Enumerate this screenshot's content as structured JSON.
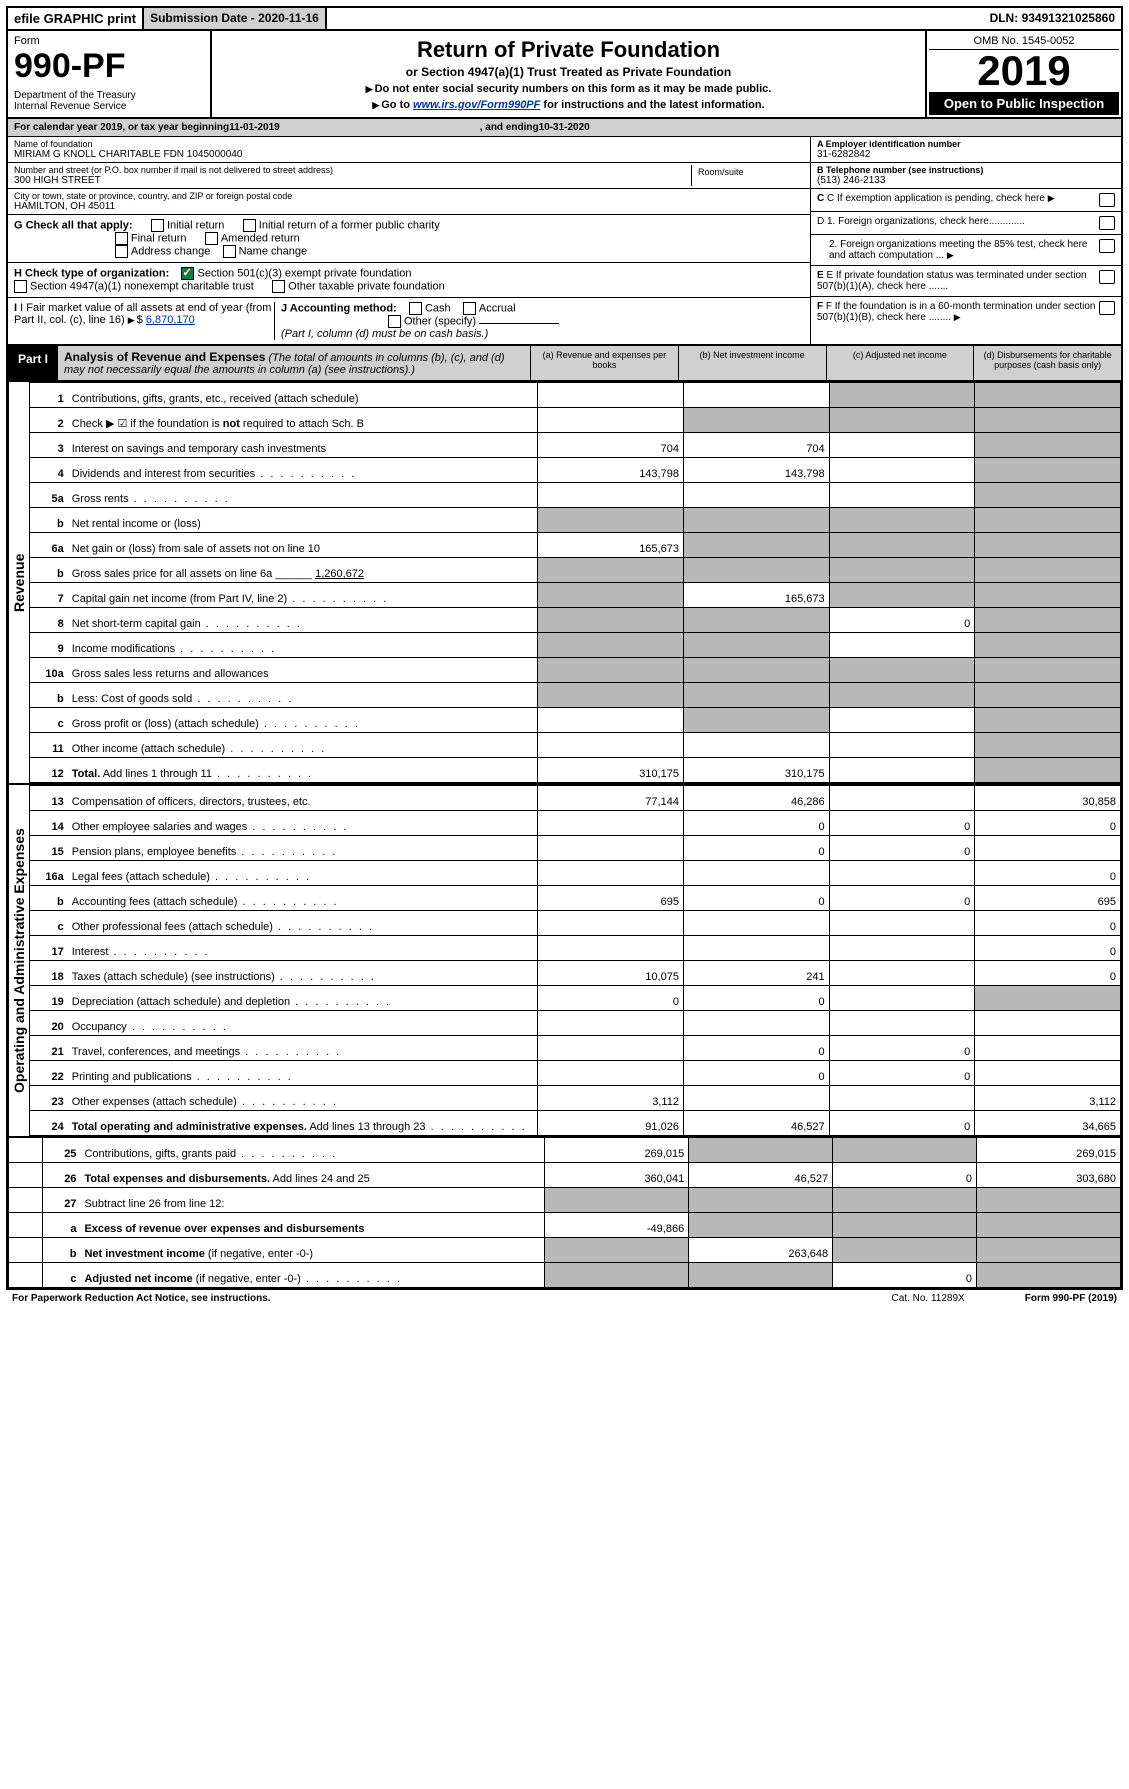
{
  "topbar": {
    "efile": "efile GRAPHIC print",
    "subdate_label": "Submission Date - ",
    "subdate": "2020-11-16",
    "dln_label": "DLN: ",
    "dln": "93491321025860"
  },
  "header": {
    "form_word": "Form",
    "form_no": "990-PF",
    "dept": "Department of the Treasury\nInternal Revenue Service",
    "title": "Return of Private Foundation",
    "subtitle": "or Section 4947(a)(1) Trust Treated as Private Foundation",
    "inst1": "Do not enter social security numbers on this form as it may be made public.",
    "inst2_pre": "Go to ",
    "inst2_link": "www.irs.gov/Form990PF",
    "inst2_post": " for instructions and the latest information.",
    "omb": "OMB No. 1545-0052",
    "year": "2019",
    "open": "Open to Public Inspection"
  },
  "calyear": {
    "pre": "For calendar year 2019, or tax year beginning ",
    "begin": "11-01-2019",
    "mid": ", and ending ",
    "end": "10-31-2020"
  },
  "info": {
    "name_label": "Name of foundation",
    "name": "MIRIAM G KNOLL CHARITABLE FDN 1045000040",
    "addr_label": "Number and street (or P.O. box number if mail is not delivered to street address)",
    "addr": "300 HIGH STREET",
    "room_label": "Room/suite",
    "city_label": "City or town, state or province, country, and ZIP or foreign postal code",
    "city": "HAMILTON, OH  45011",
    "ein_label": "A Employer identification number",
    "ein": "31-6282842",
    "tel_label": "B Telephone number (see instructions)",
    "tel": "(513) 246-2133",
    "c_label": "C If exemption application is pending, check here",
    "g_label": "G Check all that apply:",
    "g_opts": [
      "Initial return",
      "Initial return of a former public charity",
      "Final return",
      "Amended return",
      "Address change",
      "Name change"
    ],
    "d1": "D 1. Foreign organizations, check here.............",
    "d2": "2. Foreign organizations meeting the 85% test, check here and attach computation ...",
    "h_label": "H Check type of organization:",
    "h_opts": [
      "Section 501(c)(3) exempt private foundation",
      "Section 4947(a)(1) nonexempt charitable trust",
      "Other taxable private foundation"
    ],
    "e_label": "E If private foundation status was terminated under section 507(b)(1)(A), check here .......",
    "i_label": "I Fair market value of all assets at end of year (from Part II, col. (c), line 16)",
    "i_val": "6,870,170",
    "j_label": "J Accounting method:",
    "j_opts": [
      "Cash",
      "Accrual",
      "Other (specify)"
    ],
    "j_note": "(Part I, column (d) must be on cash basis.)",
    "f_label": "F If the foundation is in a 60-month termination under section 507(b)(1)(B), check here ........"
  },
  "part1": {
    "tab": "Part I",
    "title": "Analysis of Revenue and Expenses",
    "note": "(The total of amounts in columns (b), (c), and (d) may not necessarily equal the amounts in column (a) (see instructions).)",
    "col_a": "(a) Revenue and expenses per books",
    "col_b": "(b) Net investment income",
    "col_c": "(c) Adjusted net income",
    "col_d": "(d) Disbursements for charitable purposes (cash basis only)"
  },
  "sides": {
    "rev": "Revenue",
    "exp": "Operating and Administrative Expenses"
  },
  "rows": [
    {
      "n": "1",
      "d": "Contributions, gifts, grants, etc., received (attach schedule)",
      "a": "",
      "b": "",
      "c": "",
      "dd": "",
      "shade_c": true,
      "shade_d": true
    },
    {
      "n": "2",
      "d": "Check ▶ ☑ if the foundation is <b>not</b> required to attach Sch. B",
      "a": "",
      "b": "",
      "c": "",
      "dd": "",
      "shade_b": true,
      "shade_c": true,
      "shade_d": true,
      "full": true
    },
    {
      "n": "3",
      "d": "Interest on savings and temporary cash investments",
      "a": "704",
      "b": "704",
      "c": "",
      "dd": "",
      "shade_d": true
    },
    {
      "n": "4",
      "d": "Dividends and interest from securities",
      "a": "143,798",
      "b": "143,798",
      "c": "",
      "dd": "",
      "shade_d": true,
      "dots": true
    },
    {
      "n": "5a",
      "d": "Gross rents",
      "a": "",
      "b": "",
      "c": "",
      "dd": "",
      "shade_d": true,
      "dots": true
    },
    {
      "n": "b",
      "d": "Net rental income or (loss)",
      "a": "",
      "b": "",
      "c": "",
      "dd": "",
      "shade_a": true,
      "shade_b": true,
      "shade_c": true,
      "shade_d": true,
      "inline": true
    },
    {
      "n": "6a",
      "d": "Net gain or (loss) from sale of assets not on line 10",
      "a": "165,673",
      "b": "",
      "c": "",
      "dd": "",
      "shade_b": true,
      "shade_c": true,
      "shade_d": true
    },
    {
      "n": "b",
      "d": "Gross sales price for all assets on line 6a ______ <u>1,260,672</u>",
      "a": "",
      "b": "",
      "c": "",
      "dd": "",
      "shade_a": true,
      "shade_b": true,
      "shade_c": true,
      "shade_d": true
    },
    {
      "n": "7",
      "d": "Capital gain net income (from Part IV, line 2)",
      "a": "",
      "b": "165,673",
      "c": "",
      "dd": "",
      "shade_a": true,
      "shade_c": true,
      "shade_d": true,
      "dots": true
    },
    {
      "n": "8",
      "d": "Net short-term capital gain",
      "a": "",
      "b": "",
      "c": "0",
      "dd": "",
      "shade_a": true,
      "shade_b": true,
      "shade_d": true,
      "dots": true
    },
    {
      "n": "9",
      "d": "Income modifications",
      "a": "",
      "b": "",
      "c": "",
      "dd": "",
      "shade_a": true,
      "shade_b": true,
      "shade_d": true,
      "dots": true
    },
    {
      "n": "10a",
      "d": "Gross sales less returns and allowances",
      "a": "",
      "b": "",
      "c": "",
      "dd": "",
      "shade_a": true,
      "shade_b": true,
      "shade_c": true,
      "shade_d": true,
      "inline": true
    },
    {
      "n": "b",
      "d": "Less: Cost of goods sold",
      "a": "",
      "b": "",
      "c": "",
      "dd": "",
      "shade_a": true,
      "shade_b": true,
      "shade_c": true,
      "shade_d": true,
      "inline": true,
      "dots": true
    },
    {
      "n": "c",
      "d": "Gross profit or (loss) (attach schedule)",
      "a": "",
      "b": "",
      "c": "",
      "dd": "",
      "shade_b": true,
      "shade_d": true,
      "dots": true
    },
    {
      "n": "11",
      "d": "Other income (attach schedule)",
      "a": "",
      "b": "",
      "c": "",
      "dd": "",
      "shade_d": true,
      "dots": true
    },
    {
      "n": "12",
      "d": "<b>Total.</b> Add lines 1 through 11",
      "a": "310,175",
      "b": "310,175",
      "c": "",
      "dd": "",
      "shade_d": true,
      "dots": true
    },
    {
      "n": "13",
      "d": "Compensation of officers, directors, trustees, etc.",
      "a": "77,144",
      "b": "46,286",
      "c": "",
      "dd": "30,858"
    },
    {
      "n": "14",
      "d": "Other employee salaries and wages",
      "a": "",
      "b": "0",
      "c": "0",
      "dd": "0",
      "dots": true
    },
    {
      "n": "15",
      "d": "Pension plans, employee benefits",
      "a": "",
      "b": "0",
      "c": "0",
      "dd": "",
      "dots": true
    },
    {
      "n": "16a",
      "d": "Legal fees (attach schedule)",
      "a": "",
      "b": "",
      "c": "",
      "dd": "0",
      "dots": true
    },
    {
      "n": "b",
      "d": "Accounting fees (attach schedule)",
      "a": "695",
      "b": "0",
      "c": "0",
      "dd": "695",
      "dots": true
    },
    {
      "n": "c",
      "d": "Other professional fees (attach schedule)",
      "a": "",
      "b": "",
      "c": "",
      "dd": "0",
      "dots": true
    },
    {
      "n": "17",
      "d": "Interest",
      "a": "",
      "b": "",
      "c": "",
      "dd": "0",
      "dots": true
    },
    {
      "n": "18",
      "d": "Taxes (attach schedule) (see instructions)",
      "a": "10,075",
      "b": "241",
      "c": "",
      "dd": "0",
      "dots": true
    },
    {
      "n": "19",
      "d": "Depreciation (attach schedule) and depletion",
      "a": "0",
      "b": "0",
      "c": "",
      "dd": "",
      "shade_d": true,
      "dots": true
    },
    {
      "n": "20",
      "d": "Occupancy",
      "a": "",
      "b": "",
      "c": "",
      "dd": "",
      "dots": true
    },
    {
      "n": "21",
      "d": "Travel, conferences, and meetings",
      "a": "",
      "b": "0",
      "c": "0",
      "dd": "",
      "dots": true
    },
    {
      "n": "22",
      "d": "Printing and publications",
      "a": "",
      "b": "0",
      "c": "0",
      "dd": "",
      "dots": true
    },
    {
      "n": "23",
      "d": "Other expenses (attach schedule)",
      "a": "3,112",
      "b": "",
      "c": "",
      "dd": "3,112",
      "dots": true
    },
    {
      "n": "24",
      "d": "<b>Total operating and administrative expenses.</b> Add lines 13 through 23",
      "a": "91,026",
      "b": "46,527",
      "c": "0",
      "dd": "34,665",
      "dots": true
    },
    {
      "n": "25",
      "d": "Contributions, gifts, grants paid",
      "a": "269,015",
      "b": "",
      "c": "",
      "dd": "269,015",
      "shade_b": true,
      "shade_c": true,
      "dots": true
    },
    {
      "n": "26",
      "d": "<b>Total expenses and disbursements.</b> Add lines 24 and 25",
      "a": "360,041",
      "b": "46,527",
      "c": "0",
      "dd": "303,680"
    },
    {
      "n": "27",
      "d": "Subtract line 26 from line 12:",
      "a": "",
      "b": "",
      "c": "",
      "dd": "",
      "shade_a": true,
      "shade_b": true,
      "shade_c": true,
      "shade_d": true
    },
    {
      "n": "a",
      "d": "<b>Excess of revenue over expenses and disbursements</b>",
      "a": "-49,866",
      "b": "",
      "c": "",
      "dd": "",
      "shade_b": true,
      "shade_c": true,
      "shade_d": true
    },
    {
      "n": "b",
      "d": "<b>Net investment income</b> (if negative, enter -0-)",
      "a": "",
      "b": "263,648",
      "c": "",
      "dd": "",
      "shade_a": true,
      "shade_c": true,
      "shade_d": true
    },
    {
      "n": "c",
      "d": "<b>Adjusted net income</b> (if negative, enter -0-)",
      "a": "",
      "b": "",
      "c": "0",
      "dd": "",
      "shade_a": true,
      "shade_b": true,
      "shade_d": true,
      "dots": true
    }
  ],
  "footer": {
    "pra": "For Paperwork Reduction Act Notice, see instructions.",
    "cat": "Cat. No. 11289X",
    "form": "Form 990-PF (2019)"
  }
}
